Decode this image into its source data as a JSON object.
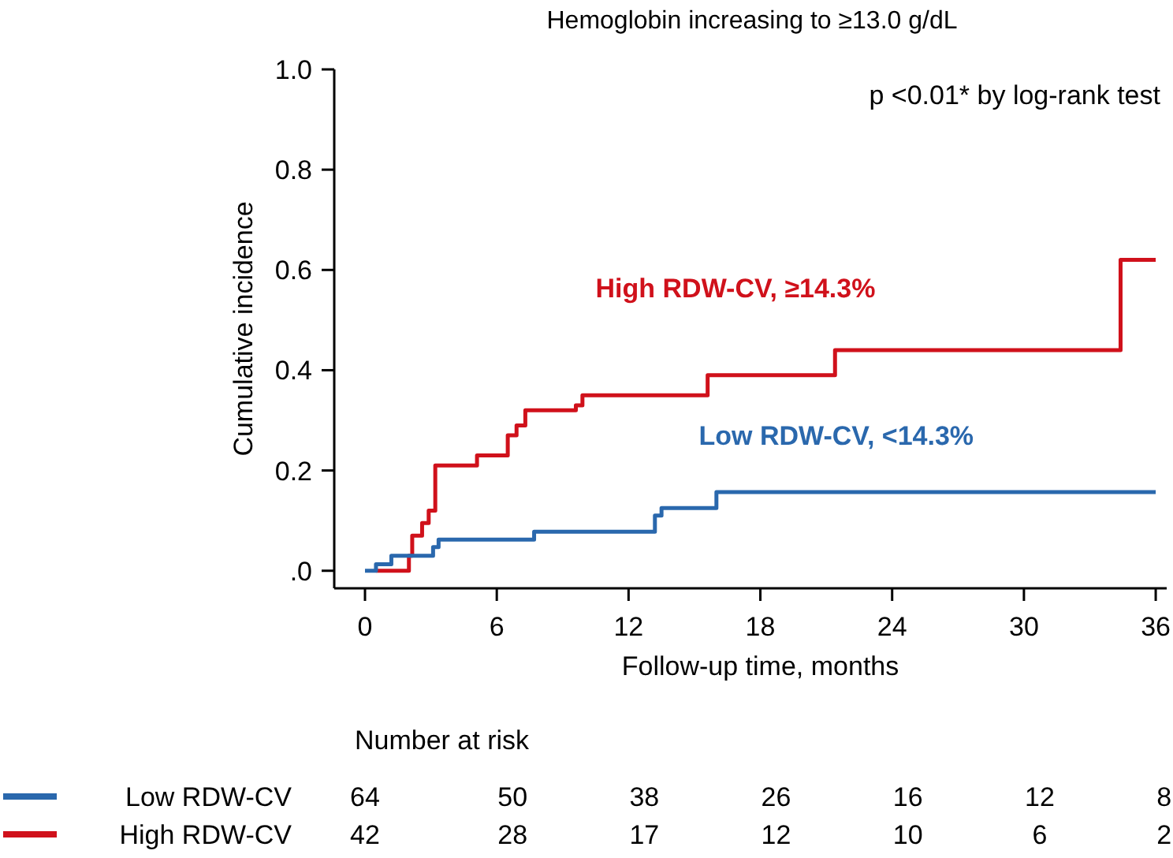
{
  "chart_data": {
    "type": "step",
    "title": "Hemoglobin increasing to ≥13.0 g/dL",
    "xlabel": "Follow-up time, months",
    "ylabel": "Cumulative incidence",
    "xlim": [
      -1.4,
      36.5
    ],
    "xticks": [
      0,
      6,
      12,
      18,
      24,
      30,
      36
    ],
    "ylim": [
      -0.035,
      1.0
    ],
    "yticks": [
      {
        "value": 0,
        "label": ".0"
      },
      0.2,
      0.4,
      0.6,
      0.8,
      {
        "value": 1.0,
        "label": "1.0"
      }
    ],
    "grid": false,
    "legend": false,
    "line_style": "solid",
    "series": [
      {
        "name": "High RDW-CV, ≥14.3%",
        "color": "#d0111b",
        "x": [
          0.5,
          2.0,
          2.15,
          2.6,
          2.9,
          3.2,
          5.1,
          6.5,
          6.9,
          7.3,
          9.6,
          9.9,
          15.6,
          21.4,
          34.4,
          36
        ],
        "values": [
          0,
          0.03,
          0.07,
          0.095,
          0.12,
          0.21,
          0.23,
          0.27,
          0.29,
          0.32,
          0.33,
          0.35,
          0.39,
          0.44,
          0.62,
          0.62
        ]
      },
      {
        "name": "Low RDW-CV, <14.3%",
        "color": "#2a68ad",
        "x": [
          0,
          0.5,
          1.2,
          3.1,
          3.35,
          7.7,
          13.2,
          13.5,
          16.0,
          36
        ],
        "values": [
          0,
          0.013,
          0.03,
          0.047,
          0.062,
          0.078,
          0.11,
          0.125,
          0.157,
          0.157
        ]
      }
    ],
    "annotations": [
      "p <0.01* by log-rank test",
      "Number at risk",
      "Low RDW-CV",
      "64",
      "50",
      "38",
      "26",
      "16",
      "12",
      "8",
      "High RDW-CV",
      "42",
      "28",
      "17",
      "12",
      "10",
      "6",
      "2"
    ]
  }
}
